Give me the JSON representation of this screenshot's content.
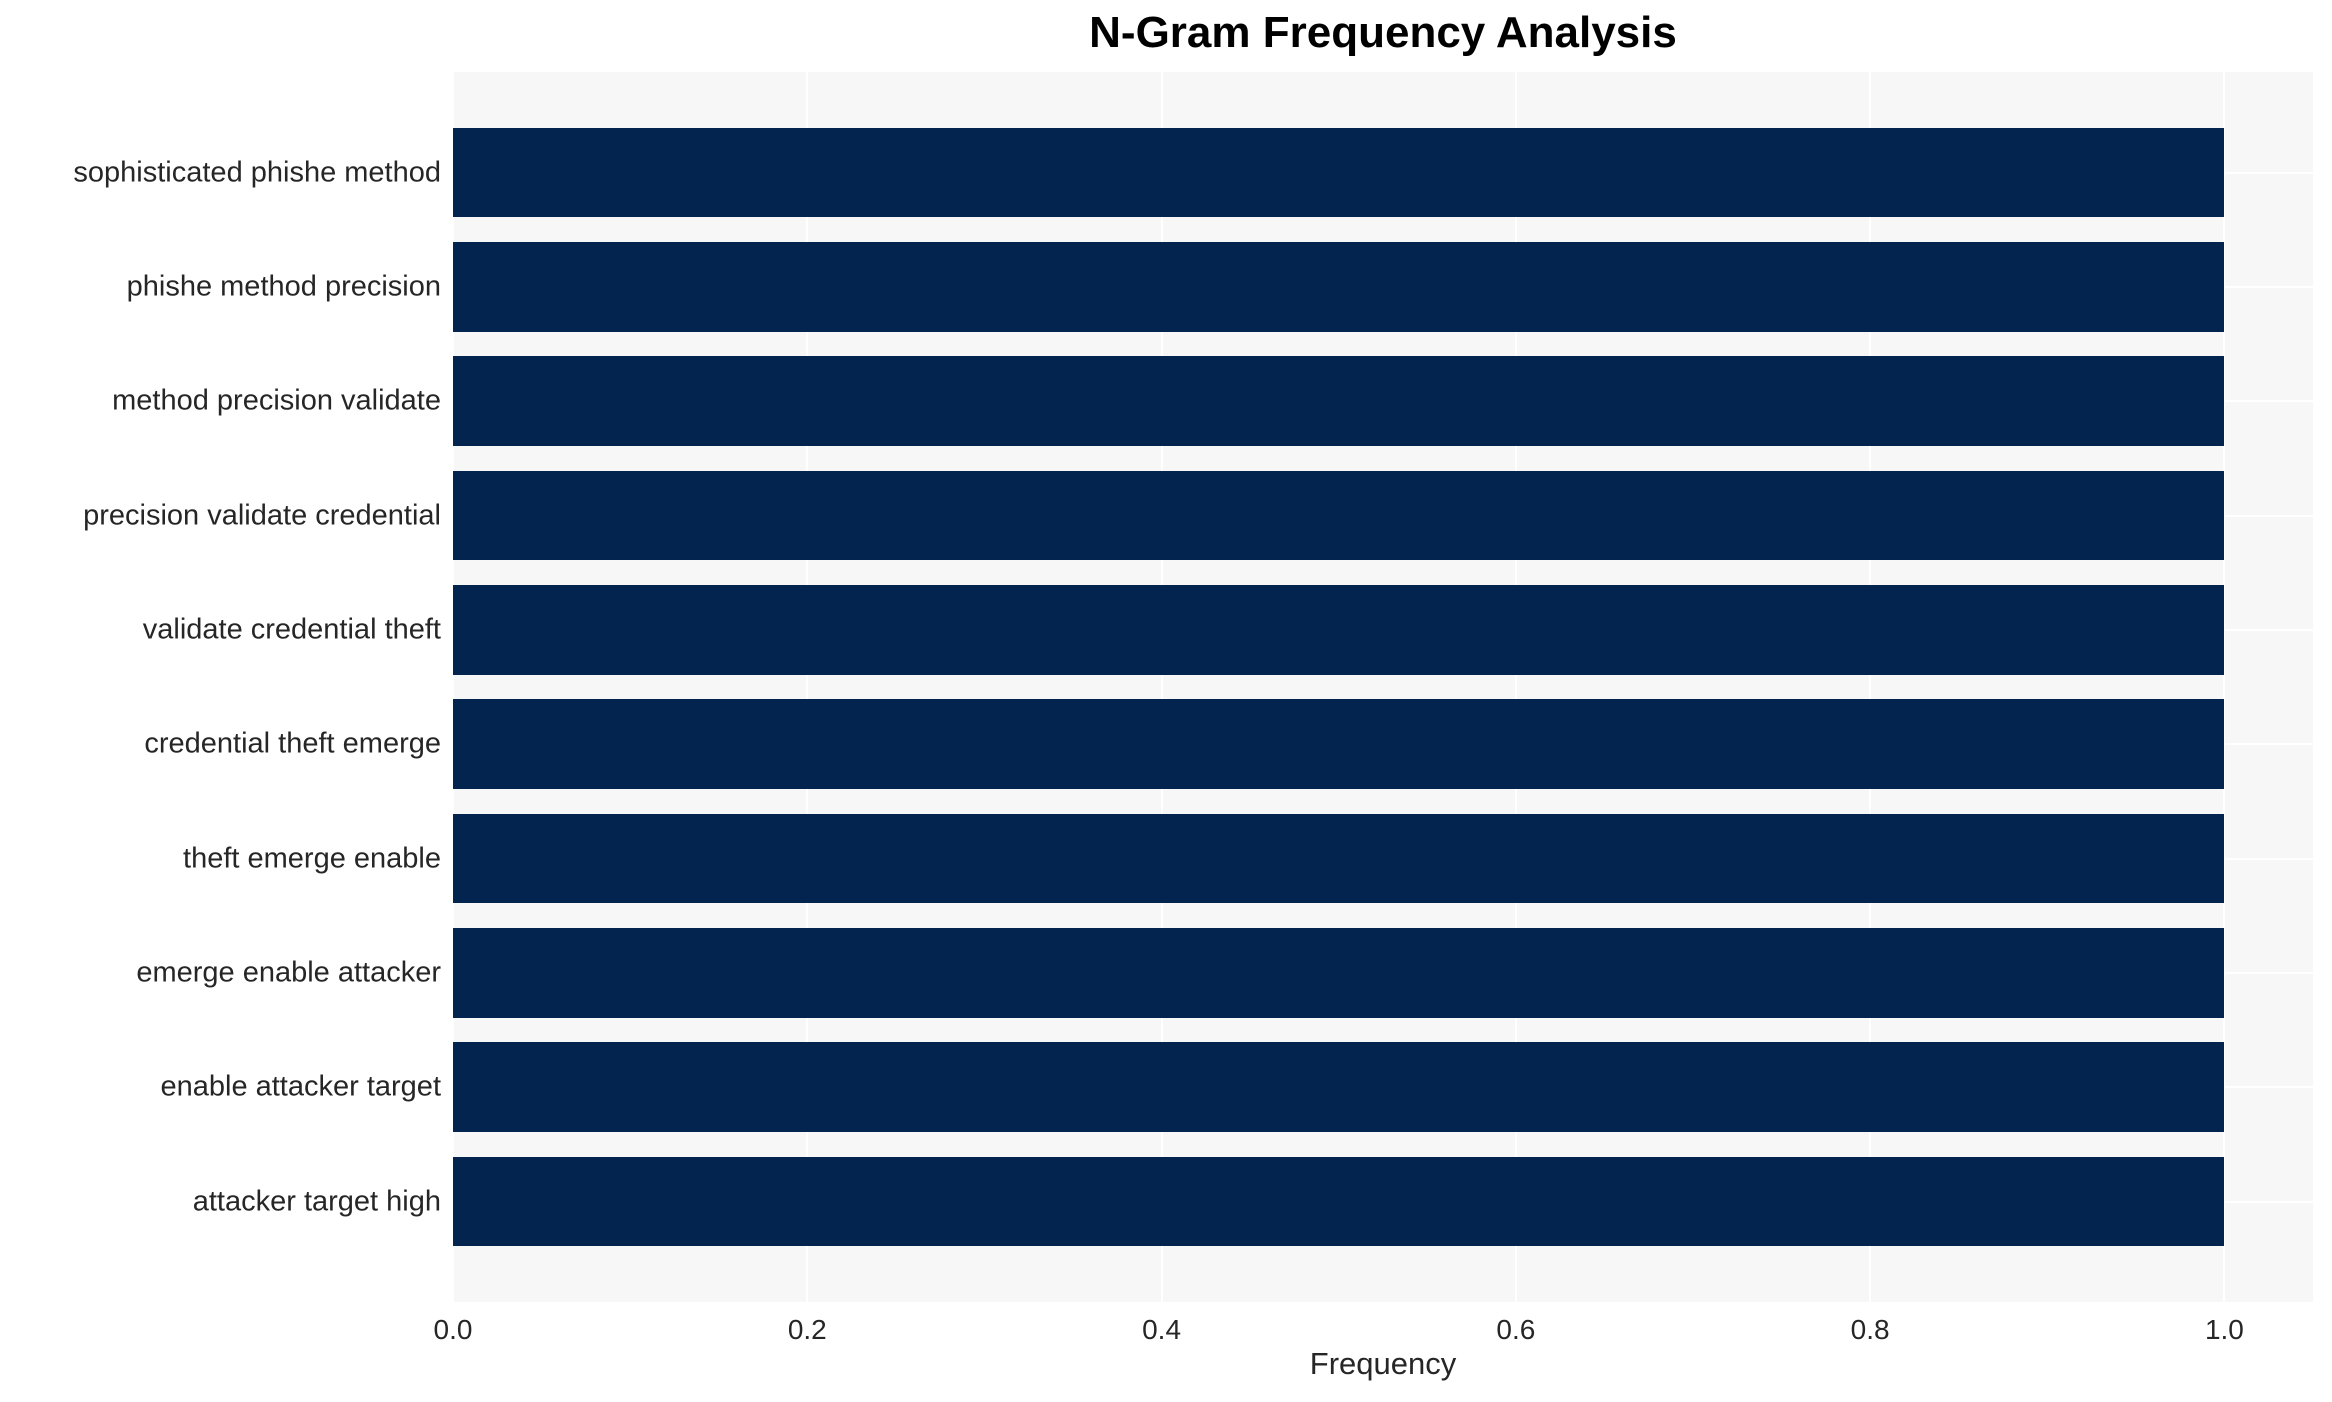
{
  "chart_data": {
    "type": "bar",
    "orientation": "horizontal",
    "title": "N-Gram Frequency Analysis",
    "xlabel": "Frequency",
    "ylabel": "",
    "categories": [
      "sophisticated phishe method",
      "phishe method precision",
      "method precision validate",
      "precision validate credential",
      "validate credential theft",
      "credential theft emerge",
      "theft emerge enable",
      "emerge enable attacker",
      "enable attacker target",
      "attacker target high"
    ],
    "values": [
      1.0,
      1.0,
      1.0,
      1.0,
      1.0,
      1.0,
      1.0,
      1.0,
      1.0,
      1.0
    ],
    "xticks": [
      "0.0",
      "0.2",
      "0.4",
      "0.6",
      "0.8",
      "1.0"
    ],
    "xlim": [
      0,
      1.05
    ],
    "grid": true,
    "legend": false,
    "bar_color": "#03244e",
    "plot_bg_color": "#f7f7f8",
    "grid_color": "#ffffff",
    "text_color": "#262626",
    "title_color": "#000000"
  }
}
